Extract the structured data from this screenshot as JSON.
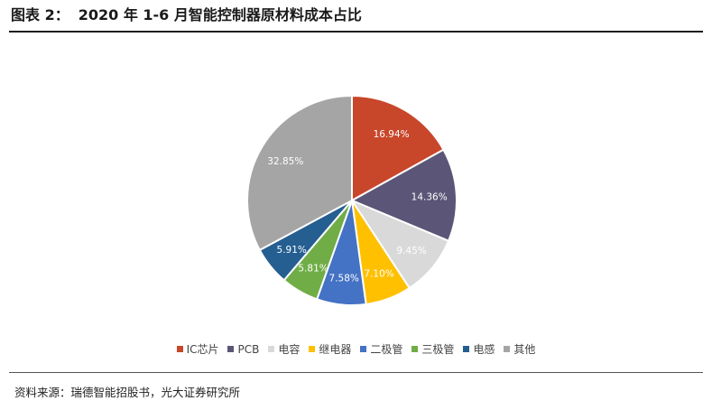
{
  "figure": {
    "label": "图表 2：",
    "title": "2020 年 1-6 月智能控制器原材料成本占比"
  },
  "chart_data": {
    "type": "pie",
    "title": "",
    "legend_position": "bottom",
    "slices": [
      {
        "name": "IC芯片",
        "value": 16.94,
        "label": "16.94%",
        "color": "#C8462A"
      },
      {
        "name": "PCB",
        "value": 14.36,
        "label": "14.36%",
        "color": "#5B5577"
      },
      {
        "name": "电容",
        "value": 9.45,
        "label": "9.45%",
        "color": "#D9D9D9"
      },
      {
        "name": "继电器",
        "value": 7.1,
        "label": "7.10%",
        "color": "#FFC000"
      },
      {
        "name": "二极管",
        "value": 7.58,
        "label": "7.58%",
        "color": "#4472C4"
      },
      {
        "name": "三极管",
        "value": 5.81,
        "label": "5.81%",
        "color": "#70AD47"
      },
      {
        "name": "电感",
        "value": 5.91,
        "label": "5.91%",
        "color": "#255E91"
      },
      {
        "name": "其他",
        "value": 32.85,
        "label": "32.85%",
        "color": "#A5A5A5"
      }
    ]
  },
  "source": "资料来源：瑞德智能招股书，光大证券研究所"
}
